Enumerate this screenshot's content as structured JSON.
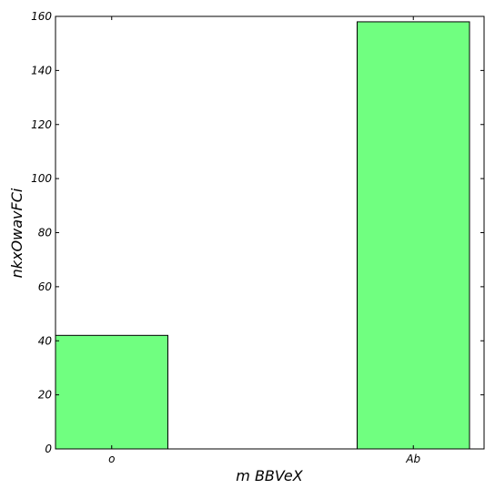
{
  "chart_data": {
    "type": "bar",
    "categories": [
      "o",
      "Ab"
    ],
    "values": [
      42,
      158
    ],
    "title": "",
    "xlabel": "m  BBVeX",
    "ylabel": "nkxOwavFCi",
    "ylim": [
      0,
      160
    ],
    "yticks": [
      0,
      20,
      40,
      60,
      80,
      100,
      120,
      140,
      160
    ],
    "grid": false,
    "bar_color": "#70ff80",
    "edge_color": "#000000"
  }
}
